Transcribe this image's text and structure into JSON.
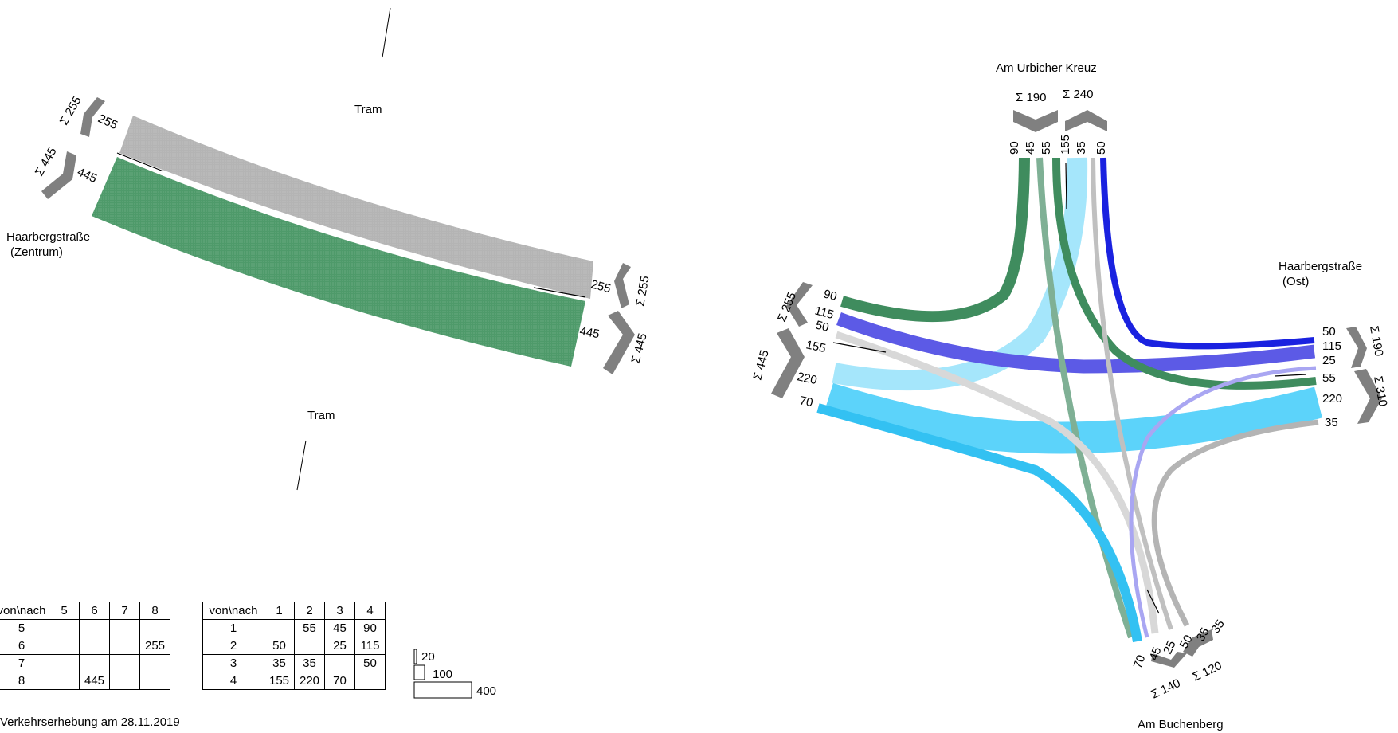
{
  "left_diagram": {
    "labels": {
      "tram_top": "Tram",
      "tram_bottom": "Tram",
      "haarberg_zentrum_line1": "Haarbergstraße",
      "haarberg_zentrum_line2": "(Zentrum)"
    },
    "west_top": {
      "sum": "Σ 255",
      "value": "255"
    },
    "west_bottom": {
      "sum": "Σ 445",
      "value": "445"
    },
    "east_top": {
      "sum": "Σ 255",
      "value": "255"
    },
    "east_bottom": {
      "sum": "Σ 445",
      "value": "445"
    }
  },
  "right_diagram": {
    "labels": {
      "north": "Am Urbicher Kreuz",
      "east_line1": "Haarbergstraße",
      "east_line2": "(Ost)",
      "south": "Am Buchenberg"
    },
    "north_in_sum": "Σ 190",
    "north_out_sum": "Σ 240",
    "north_values": [
      "90",
      "45",
      "55",
      "155",
      "35",
      "50"
    ],
    "west_in_sum": "Σ 255",
    "west_out_sum": "Σ 445",
    "west_values": [
      "90",
      "115",
      "50",
      "155",
      "220",
      "70"
    ],
    "east_out_sum": "Σ 190",
    "east_in_sum": "Σ 310",
    "east_values": [
      "50",
      "115",
      "25",
      "55",
      "220",
      "35"
    ],
    "south_out_sum": "Σ 140",
    "south_in_sum": "Σ 120",
    "south_values": [
      "70",
      "45",
      "25",
      "50",
      "35",
      "35"
    ]
  },
  "table_left": {
    "header": [
      "von\\nach",
      "5",
      "6",
      "7",
      "8"
    ],
    "rows": [
      [
        "5",
        "",
        "",
        "",
        ""
      ],
      [
        "6",
        "",
        "",
        "",
        "255"
      ],
      [
        "7",
        "",
        "",
        "",
        ""
      ],
      [
        "8",
        "",
        "445",
        "",
        ""
      ]
    ]
  },
  "table_right": {
    "header": [
      "von\\nach",
      "1",
      "2",
      "3",
      "4"
    ],
    "rows": [
      [
        "1",
        "",
        "55",
        "45",
        "90"
      ],
      [
        "2",
        "50",
        "",
        "25",
        "115"
      ],
      [
        "3",
        "35",
        "35",
        "",
        "50"
      ],
      [
        "4",
        "155",
        "220",
        "70",
        ""
      ]
    ]
  },
  "scale_legend": [
    "20",
    "100",
    "400"
  ],
  "footer": "Verkehrserhebung am 28.11.2019",
  "colors": {
    "gray": "#b4b4b4",
    "green": "#4e9a6a",
    "dark_green": "#3f8c5e",
    "sage": "#7fb095",
    "blue": "#1a22e0",
    "violet": "#5c5ae6",
    "light_violet": "#a9a6f2",
    "cyan": "#5cd3fa",
    "light_cyan": "#a5e6fb",
    "sky": "#33c1f2",
    "light_gray": "#d8d8d8",
    "arrow_gray": "#808080"
  }
}
